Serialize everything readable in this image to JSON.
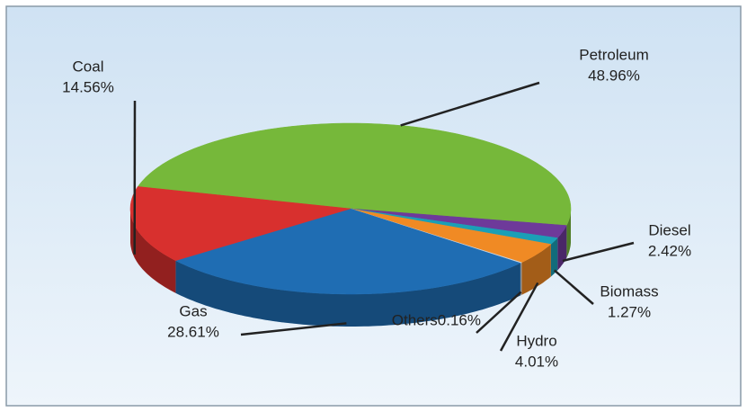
{
  "chart_data": {
    "type": "pie",
    "categories": [
      "Petroleum",
      "Diesel",
      "Biomass",
      "Hydro",
      "Others",
      "Gas",
      "Coal"
    ],
    "values": [
      48.96,
      2.42,
      1.27,
      4.01,
      0.16,
      28.61,
      14.56
    ],
    "value_labels": [
      "48.96%",
      "2.42%",
      "1.27%",
      "4.01%",
      "0.16%",
      "28.61%",
      "14.56%"
    ],
    "colors": [
      "#76b83a",
      "#6e3a9a",
      "#1b9fb6",
      "#f08a24",
      "#c9d3dc",
      "#1f6db3",
      "#d8302e"
    ]
  }
}
